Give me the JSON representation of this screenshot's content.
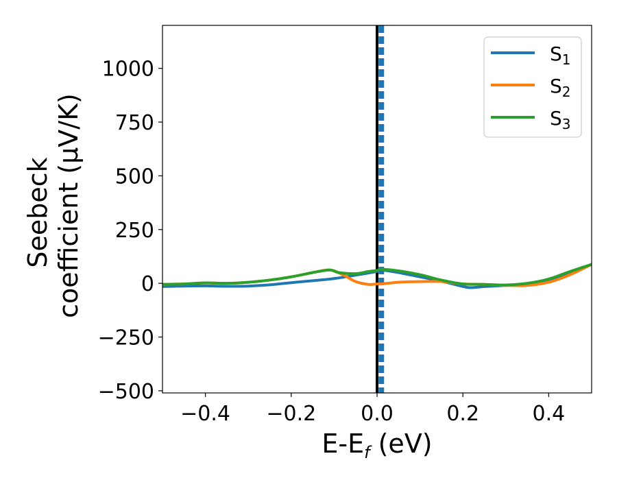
{
  "chart_data": {
    "type": "line",
    "xlabel": {
      "main": "E-E",
      "sub": "f",
      "unit": " (eV)"
    },
    "ylabel": {
      "line1": "Seebeck",
      "line2": "coefficient  (μV/K)"
    },
    "xlim": [
      -0.5,
      0.5
    ],
    "ylim": [
      -510,
      1200
    ],
    "xticks": [
      -0.4,
      -0.2,
      0.0,
      0.2,
      0.4
    ],
    "xtick_labels": [
      "−0.4",
      "−0.2",
      "0.0",
      "0.2",
      "0.4"
    ],
    "yticks": [
      -500,
      -250,
      0,
      250,
      500,
      750,
      1000
    ],
    "ytick_labels": [
      "−500",
      "−250",
      "0",
      "250",
      "500",
      "750",
      "1000"
    ],
    "legend_position": "top-right",
    "vlines": [
      {
        "x": 0.0,
        "style": "solid",
        "color": "#000000"
      },
      {
        "x": 0.01,
        "style": "dashed",
        "color": "#1f77b4"
      }
    ],
    "series": [
      {
        "name": "S",
        "sub": "1",
        "color": "#1f77b4",
        "x": [
          -0.5,
          -0.45,
          -0.4,
          -0.35,
          -0.3,
          -0.25,
          -0.2,
          -0.15,
          -0.1,
          -0.05,
          0.0,
          0.01,
          0.05,
          0.1,
          0.15,
          0.2,
          0.22,
          0.25,
          0.3,
          0.35,
          0.4,
          0.45,
          0.5
        ],
        "y": [
          -15,
          -13,
          -12,
          -14,
          -13,
          -7,
          3,
          12,
          22,
          38,
          55,
          62,
          50,
          30,
          10,
          -15,
          -20,
          -15,
          -10,
          -5,
          10,
          45,
          88
        ]
      },
      {
        "name": "S",
        "sub": "2",
        "color": "#ff7f0e",
        "x": [
          -0.5,
          -0.45,
          -0.4,
          -0.35,
          -0.3,
          -0.25,
          -0.2,
          -0.15,
          -0.11,
          -0.08,
          -0.05,
          -0.02,
          0.0,
          0.01,
          0.05,
          0.1,
          0.15,
          0.2,
          0.25,
          0.3,
          0.35,
          0.4,
          0.45,
          0.5
        ],
        "y": [
          -5,
          -3,
          2,
          0,
          5,
          15,
          30,
          50,
          62,
          40,
          8,
          -5,
          -3,
          -3,
          5,
          8,
          8,
          -3,
          -5,
          -10,
          -10,
          5,
          40,
          88
        ]
      },
      {
        "name": "S",
        "sub": "3",
        "color": "#2ca02c",
        "x": [
          -0.5,
          -0.45,
          -0.4,
          -0.35,
          -0.3,
          -0.25,
          -0.2,
          -0.15,
          -0.11,
          -0.09,
          -0.05,
          -0.02,
          0.0,
          0.01,
          0.05,
          0.1,
          0.15,
          0.2,
          0.25,
          0.3,
          0.35,
          0.4,
          0.45,
          0.5
        ],
        "y": [
          -5,
          -3,
          2,
          0,
          5,
          15,
          30,
          50,
          62,
          50,
          45,
          55,
          60,
          65,
          58,
          40,
          15,
          -3,
          -5,
          -8,
          0,
          20,
          55,
          88
        ]
      }
    ]
  }
}
